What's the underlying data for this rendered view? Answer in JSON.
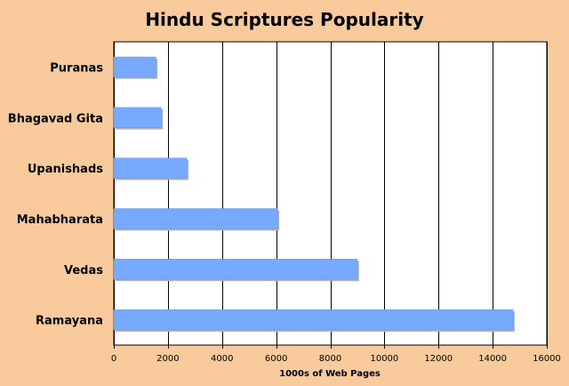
{
  "chart_data": {
    "type": "bar",
    "orientation": "horizontal",
    "title": "Hindu Scriptures Popularity",
    "xlabel": "1000s of Web Pages",
    "ylabel": "",
    "categories": [
      "Puranas",
      "Bhagavad Gita",
      "Upanishads",
      "Mahabharata",
      "Vedas",
      "Ramayana"
    ],
    "values": [
      1550,
      1750,
      2700,
      6050,
      9000,
      14750
    ],
    "xlim": [
      0,
      16000
    ],
    "x_ticks": [
      0,
      2000,
      4000,
      6000,
      8000,
      10000,
      12000,
      14000,
      16000
    ],
    "grid": "vertical",
    "legend": "none",
    "colors": {
      "background": "#f9cb9c",
      "plot_background": "#ffffff",
      "bar": "#76a9ff",
      "bar_edge": "#5f8fdb",
      "shadow": "#b5b5b5",
      "grid": "#000000",
      "text": "#000000"
    }
  }
}
